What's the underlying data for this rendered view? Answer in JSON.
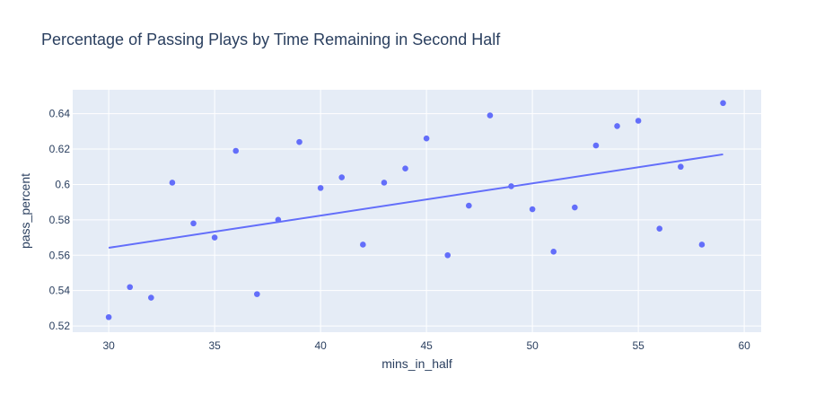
{
  "chart_data": {
    "type": "scatter",
    "title": "Percentage of Passing Plays by Time Remaining in Second Half",
    "xlabel": "mins_in_half",
    "ylabel": "pass_percent",
    "xlim": [
      28.3,
      60.8
    ],
    "ylim": [
      0.5165,
      0.6535
    ],
    "x_ticks": [
      30,
      35,
      40,
      45,
      50,
      55,
      60
    ],
    "y_ticks": [
      0.52,
      0.54,
      0.56,
      0.58,
      0.6,
      0.62,
      0.64
    ],
    "x_tick_labels": [
      "30",
      "35",
      "40",
      "45",
      "50",
      "55",
      "60"
    ],
    "y_tick_labels": [
      "0.52",
      "0.54",
      "0.56",
      "0.58",
      "0.6",
      "0.62",
      "0.64"
    ],
    "grid": true,
    "colors": {
      "plot_background": "#e5ecf6",
      "grid": "#ffffff",
      "marker": "#636efa",
      "trendline": "#636efa",
      "text": "#2a3f5f"
    },
    "points": [
      {
        "x": 30,
        "y": 0.525
      },
      {
        "x": 31,
        "y": 0.542
      },
      {
        "x": 32,
        "y": 0.536
      },
      {
        "x": 33,
        "y": 0.601
      },
      {
        "x": 34,
        "y": 0.578
      },
      {
        "x": 35,
        "y": 0.57
      },
      {
        "x": 36,
        "y": 0.619
      },
      {
        "x": 37,
        "y": 0.538
      },
      {
        "x": 38,
        "y": 0.58
      },
      {
        "x": 39,
        "y": 0.624
      },
      {
        "x": 40,
        "y": 0.598
      },
      {
        "x": 41,
        "y": 0.604
      },
      {
        "x": 42,
        "y": 0.566
      },
      {
        "x": 43,
        "y": 0.601
      },
      {
        "x": 44,
        "y": 0.609
      },
      {
        "x": 45,
        "y": 0.626
      },
      {
        "x": 46,
        "y": 0.56
      },
      {
        "x": 47,
        "y": 0.588
      },
      {
        "x": 48,
        "y": 0.639
      },
      {
        "x": 49,
        "y": 0.599
      },
      {
        "x": 50,
        "y": 0.586
      },
      {
        "x": 51,
        "y": 0.562
      },
      {
        "x": 52,
        "y": 0.587
      },
      {
        "x": 53,
        "y": 0.622
      },
      {
        "x": 54,
        "y": 0.633
      },
      {
        "x": 55,
        "y": 0.636
      },
      {
        "x": 56,
        "y": 0.575
      },
      {
        "x": 57,
        "y": 0.61
      },
      {
        "x": 58,
        "y": 0.566
      },
      {
        "x": 59,
        "y": 0.646
      }
    ],
    "trendline": {
      "x": [
        30,
        59
      ],
      "y": [
        0.5642,
        0.617
      ]
    }
  }
}
